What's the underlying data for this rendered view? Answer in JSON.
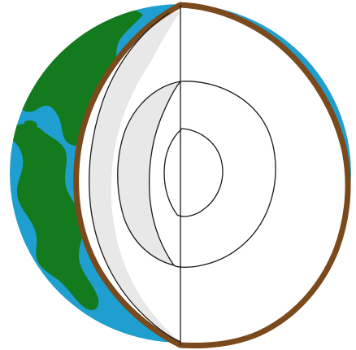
{
  "diagram": {
    "colors": {
      "background": "#ffffff",
      "ocean": "#1f9fcf",
      "land": "#137a1d",
      "crust": "#7a4a1c",
      "outline": "#1a1a1a",
      "cutaway_face": "#ffffff",
      "inner_shell": "#e8e8e8"
    },
    "layers": [
      "crust",
      "mantle",
      "outer-core",
      "inner-core"
    ]
  }
}
